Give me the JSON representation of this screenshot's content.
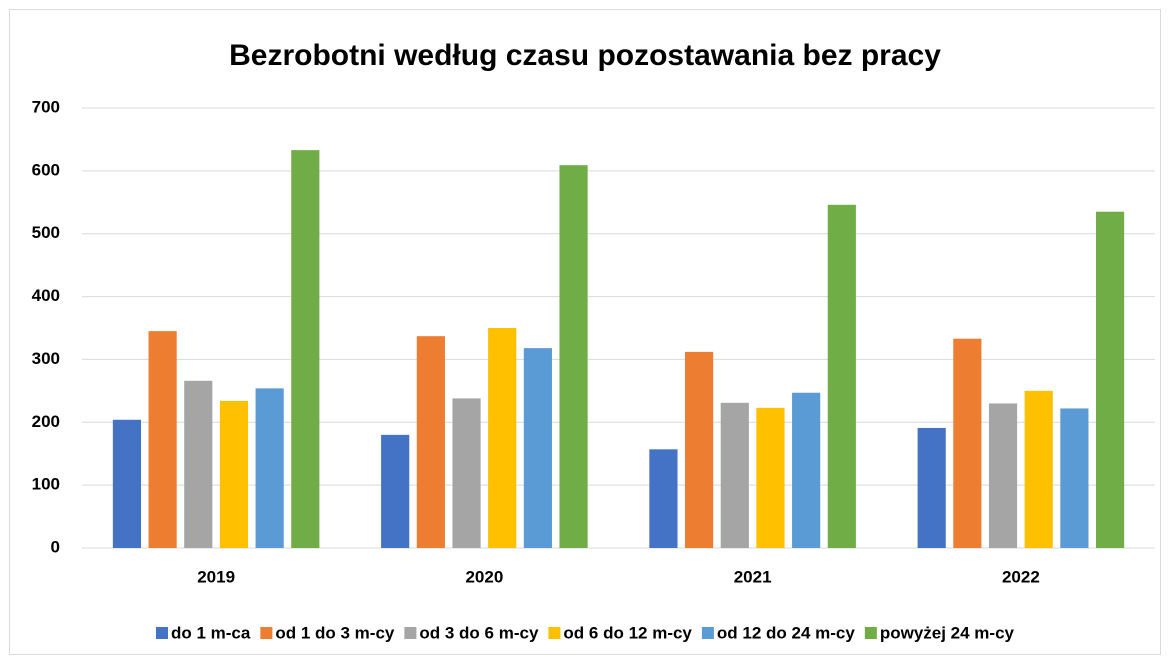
{
  "chart_data": {
    "type": "bar",
    "title": "Bezrobotni według czasu pozostawania bez pracy",
    "categories": [
      "2019",
      "2020",
      "2021",
      "2022"
    ],
    "series": [
      {
        "name": "do 1 m-ca",
        "color": "#4472c4",
        "values": [
          204,
          180,
          157,
          191
        ]
      },
      {
        "name": "od 1 do 3 m-cy",
        "color": "#ed7d31",
        "values": [
          345,
          337,
          312,
          333
        ]
      },
      {
        "name": "od 3 do 6 m-cy",
        "color": "#a5a5a5",
        "values": [
          266,
          238,
          231,
          230
        ]
      },
      {
        "name": "od 6 do 12 m-cy",
        "color": "#ffc000",
        "values": [
          234,
          350,
          223,
          250
        ]
      },
      {
        "name": "od 12 do 24 m-cy",
        "color": "#5b9bd5",
        "values": [
          254,
          318,
          247,
          222
        ]
      },
      {
        "name": "powyżej 24 m-cy",
        "color": "#70ad47",
        "values": [
          633,
          609,
          546,
          535
        ]
      }
    ],
    "ylim": [
      0,
      700
    ],
    "yticks": [
      0,
      100,
      200,
      300,
      400,
      500,
      600,
      700
    ],
    "grid": true,
    "legend": "bottom"
  }
}
